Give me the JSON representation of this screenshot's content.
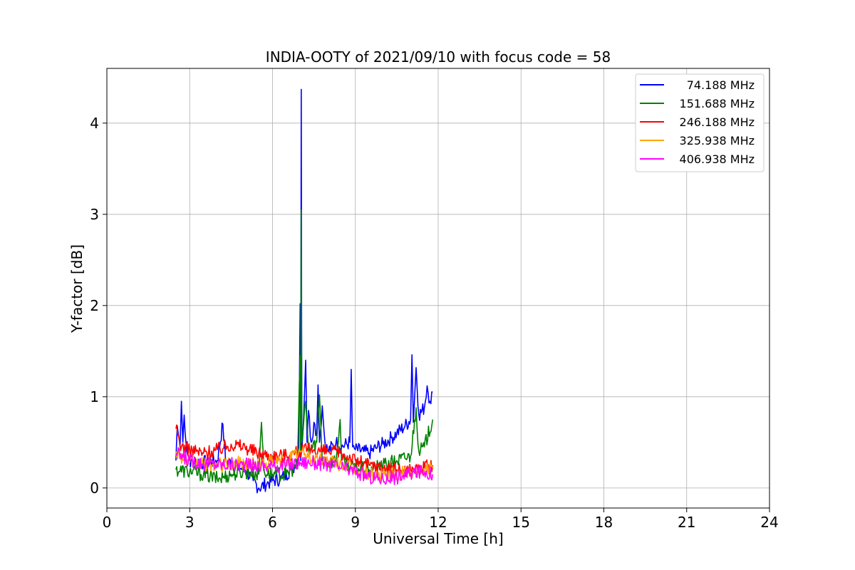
{
  "chart_data": {
    "type": "line",
    "title": "INDIA-OOTY of 2021/09/10 with focus code = 58",
    "xlabel": "Universal Time [h]",
    "ylabel": "Y-factor [dB]",
    "xlim": [
      0,
      24
    ],
    "ylim": [
      -0.22,
      4.6
    ],
    "xticks": [
      "0",
      "3",
      "6",
      "9",
      "12",
      "15",
      "18",
      "21",
      "24"
    ],
    "yticks": [
      "0",
      "1",
      "2",
      "3",
      "4"
    ],
    "grid": true,
    "legend_position": "top-right",
    "series": [
      {
        "name": "74.188 MHz",
        "color": "#0000ff",
        "points": [
          [
            2.5,
            0.3
          ],
          [
            2.55,
            0.68
          ],
          [
            2.65,
            0.45
          ],
          [
            2.7,
            0.95
          ],
          [
            2.75,
            0.5
          ],
          [
            2.8,
            0.8
          ],
          [
            2.9,
            0.4
          ],
          [
            3.0,
            0.3
          ],
          [
            3.5,
            0.28
          ],
          [
            4.0,
            0.3
          ],
          [
            4.2,
            0.7
          ],
          [
            4.3,
            0.3
          ],
          [
            4.8,
            0.22
          ],
          [
            5.0,
            0.2
          ],
          [
            5.3,
            0.08
          ],
          [
            5.5,
            0.0
          ],
          [
            5.8,
            0.05
          ],
          [
            6.0,
            0.08
          ],
          [
            6.3,
            0.1
          ],
          [
            6.5,
            0.15
          ],
          [
            6.8,
            0.25
          ],
          [
            6.95,
            0.35
          ],
          [
            7.0,
            2.02
          ],
          [
            7.02,
            0.3
          ],
          [
            7.04,
            4.37
          ],
          [
            7.06,
            0.4
          ],
          [
            7.1,
            0.6
          ],
          [
            7.2,
            1.4
          ],
          [
            7.25,
            0.5
          ],
          [
            7.3,
            0.85
          ],
          [
            7.4,
            0.5
          ],
          [
            7.5,
            0.72
          ],
          [
            7.6,
            0.6
          ],
          [
            7.65,
            1.13
          ],
          [
            7.7,
            0.5
          ],
          [
            7.8,
            0.9
          ],
          [
            7.9,
            0.5
          ],
          [
            8.0,
            0.4
          ],
          [
            8.3,
            0.5
          ],
          [
            8.5,
            0.45
          ],
          [
            8.8,
            0.5
          ],
          [
            8.85,
            1.3
          ],
          [
            8.9,
            0.45
          ],
          [
            9.0,
            0.42
          ],
          [
            9.3,
            0.4
          ],
          [
            9.5,
            0.38
          ],
          [
            9.8,
            0.45
          ],
          [
            10.0,
            0.48
          ],
          [
            10.3,
            0.55
          ],
          [
            10.5,
            0.6
          ],
          [
            10.8,
            0.68
          ],
          [
            11.0,
            0.75
          ],
          [
            11.05,
            1.46
          ],
          [
            11.1,
            0.72
          ],
          [
            11.2,
            1.32
          ],
          [
            11.3,
            0.8
          ],
          [
            11.5,
            0.88
          ],
          [
            11.6,
            1.12
          ],
          [
            11.7,
            0.95
          ],
          [
            11.8,
            1.05
          ]
        ]
      },
      {
        "name": "151.688 MHz",
        "color": "#008000",
        "points": [
          [
            2.5,
            0.2
          ],
          [
            3.0,
            0.18
          ],
          [
            3.5,
            0.15
          ],
          [
            4.0,
            0.1
          ],
          [
            4.5,
            0.15
          ],
          [
            5.0,
            0.18
          ],
          [
            5.5,
            0.15
          ],
          [
            5.6,
            0.72
          ],
          [
            5.7,
            0.18
          ],
          [
            6.0,
            0.15
          ],
          [
            6.5,
            0.15
          ],
          [
            6.9,
            0.25
          ],
          [
            7.0,
            1.45
          ],
          [
            7.02,
            0.4
          ],
          [
            7.04,
            3.05
          ],
          [
            7.06,
            0.5
          ],
          [
            7.2,
            0.95
          ],
          [
            7.3,
            0.4
          ],
          [
            7.6,
            0.5
          ],
          [
            7.7,
            1.02
          ],
          [
            7.8,
            0.3
          ],
          [
            8.0,
            0.28
          ],
          [
            8.3,
            0.3
          ],
          [
            8.45,
            0.75
          ],
          [
            8.5,
            0.3
          ],
          [
            9.0,
            0.22
          ],
          [
            9.5,
            0.2
          ],
          [
            10.0,
            0.25
          ],
          [
            10.5,
            0.3
          ],
          [
            11.0,
            0.35
          ],
          [
            11.2,
            0.88
          ],
          [
            11.3,
            0.4
          ],
          [
            11.5,
            0.45
          ],
          [
            11.8,
            0.75
          ]
        ]
      },
      {
        "name": "246.188 MHz",
        "color": "#ff0000",
        "points": [
          [
            2.5,
            0.65
          ],
          [
            2.7,
            0.45
          ],
          [
            3.0,
            0.42
          ],
          [
            3.5,
            0.38
          ],
          [
            4.0,
            0.42
          ],
          [
            4.5,
            0.48
          ],
          [
            5.0,
            0.45
          ],
          [
            5.5,
            0.38
          ],
          [
            6.0,
            0.35
          ],
          [
            6.5,
            0.36
          ],
          [
            7.0,
            0.4
          ],
          [
            7.5,
            0.42
          ],
          [
            8.0,
            0.4
          ],
          [
            8.5,
            0.38
          ],
          [
            9.0,
            0.3
          ],
          [
            9.5,
            0.25
          ],
          [
            10.0,
            0.22
          ],
          [
            10.5,
            0.2
          ],
          [
            11.0,
            0.2
          ],
          [
            11.5,
            0.22
          ],
          [
            11.8,
            0.25
          ]
        ]
      },
      {
        "name": "325.938 MHz",
        "color": "#ffa500",
        "points": [
          [
            2.5,
            0.4
          ],
          [
            3.0,
            0.28
          ],
          [
            3.5,
            0.26
          ],
          [
            4.0,
            0.25
          ],
          [
            4.5,
            0.26
          ],
          [
            5.0,
            0.28
          ],
          [
            5.5,
            0.25
          ],
          [
            6.0,
            0.28
          ],
          [
            6.5,
            0.3
          ],
          [
            7.0,
            0.4
          ],
          [
            7.5,
            0.32
          ],
          [
            8.0,
            0.3
          ],
          [
            8.5,
            0.26
          ],
          [
            9.0,
            0.2
          ],
          [
            9.5,
            0.15
          ],
          [
            10.0,
            0.13
          ],
          [
            10.5,
            0.15
          ],
          [
            11.0,
            0.18
          ],
          [
            11.5,
            0.2
          ],
          [
            11.8,
            0.22
          ]
        ]
      },
      {
        "name": "406.938 MHz",
        "color": "#ff00ff",
        "points": [
          [
            2.5,
            0.38
          ],
          [
            3.0,
            0.3
          ],
          [
            3.5,
            0.27
          ],
          [
            4.0,
            0.26
          ],
          [
            4.5,
            0.26
          ],
          [
            5.0,
            0.25
          ],
          [
            5.5,
            0.24
          ],
          [
            6.0,
            0.24
          ],
          [
            6.5,
            0.25
          ],
          [
            7.0,
            0.28
          ],
          [
            7.5,
            0.28
          ],
          [
            8.0,
            0.26
          ],
          [
            8.5,
            0.22
          ],
          [
            9.0,
            0.18
          ],
          [
            9.5,
            0.12
          ],
          [
            10.0,
            0.1
          ],
          [
            10.5,
            0.12
          ],
          [
            11.0,
            0.16
          ],
          [
            11.5,
            0.18
          ],
          [
            11.8,
            0.15
          ]
        ]
      }
    ]
  }
}
